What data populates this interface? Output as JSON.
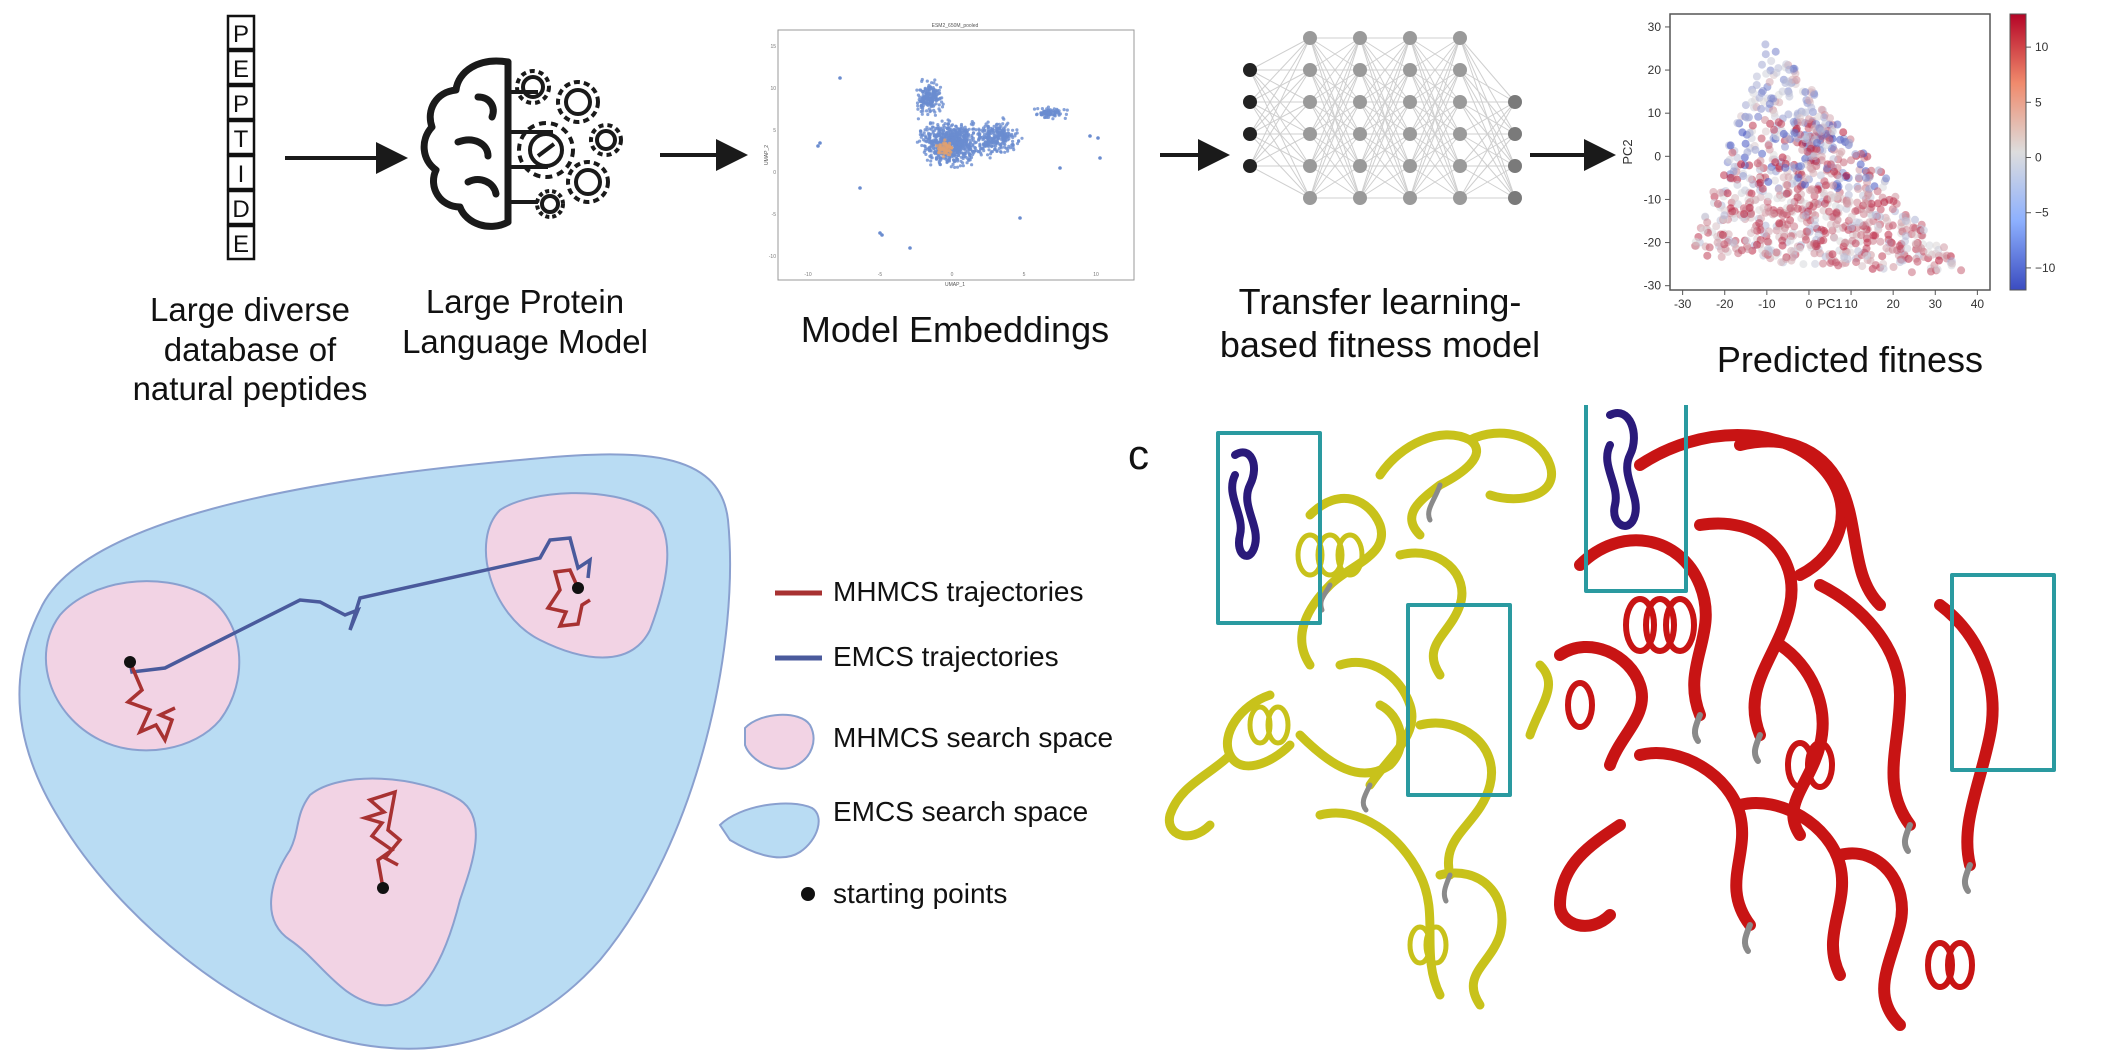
{
  "pipeline": {
    "peptide_letters": [
      "P",
      "E",
      "P",
      "T",
      "I",
      "D",
      "E"
    ],
    "step1_caption": [
      "Large diverse",
      "database of",
      "natural peptides"
    ],
    "step2_caption": [
      "Large Protein",
      "Language Model"
    ],
    "step3_caption": "Model Embeddings",
    "step4_caption": [
      "Transfer learning-",
      "based fitness model"
    ],
    "step5_caption": "Predicted fitness",
    "embedding_plot_title": "ESM2_650M_pooled",
    "embedding_xlabel": "UMAP_1",
    "embedding_ylabel": "UMAP_2",
    "embedding_xticks": [
      "-10",
      "-5",
      "0",
      "5",
      "10"
    ],
    "embedding_yticks": [
      "15",
      "10",
      "5",
      "0",
      "-5",
      "-10"
    ]
  },
  "chart_data": {
    "type": "scatter",
    "title": "",
    "xlabel": "PC1",
    "ylabel": "PC2",
    "xlim": [
      -33,
      43
    ],
    "ylim": [
      -31,
      33
    ],
    "xticks": [
      -30,
      -20,
      -10,
      0,
      10,
      20,
      30,
      40
    ],
    "yticks": [
      30,
      20,
      10,
      0,
      -10,
      -20,
      -30
    ],
    "colorbar": {
      "min": -12,
      "max": 13,
      "ticks": [
        10,
        5,
        0,
        -5,
        -10
      ],
      "cmap": "coolwarm",
      "low_color": "#3b4cc0",
      "mid_color": "#dddddd",
      "high_color": "#b40426"
    },
    "grid": false,
    "note_points": "point cloud: dense triangle-shaped cloud, apex near (-10, 28), base from (-28, -23) to (38, -28)"
  },
  "search_space": {
    "legend": [
      {
        "label": "MHMCS trajectories",
        "color": "#a83232"
      },
      {
        "label": "EMCS trajectories",
        "color": "#4a5a9c"
      },
      {
        "label": "MHMCS search space",
        "color": "#f2d3e4"
      },
      {
        "label": "EMCS search space",
        "color": "#b9dcf3"
      },
      {
        "label": "starting points",
        "color": "#111111"
      }
    ]
  },
  "structures": {
    "panel_label": "c",
    "left_color": "#c8c21b",
    "right_color": "#c81414",
    "highlight_box_color": "#2a9aa0",
    "loop_color": "#2a1a7a"
  }
}
